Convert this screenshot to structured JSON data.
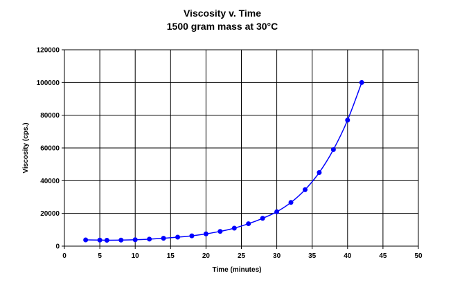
{
  "chart_data": {
    "type": "line",
    "title": "Viscosity v. Time",
    "subtitle": "1500 gram mass at 30°C",
    "xlabel": "Time (minutes)",
    "ylabel": "Viscosity (cps.)",
    "xlim": [
      0,
      50
    ],
    "ylim": [
      0,
      120000
    ],
    "xticks": [
      0,
      5,
      10,
      15,
      20,
      25,
      30,
      35,
      40,
      45,
      50
    ],
    "yticks": [
      0,
      20000,
      40000,
      60000,
      80000,
      100000,
      120000
    ],
    "grid": true,
    "series": [
      {
        "name": "Viscosity",
        "color": "#0000ff",
        "x": [
          3,
          5,
          6,
          8,
          10,
          12,
          14,
          16,
          18,
          20,
          22,
          24,
          26,
          28,
          30,
          32,
          34,
          36,
          38,
          40,
          42
        ],
        "y": [
          3800,
          3700,
          3600,
          3700,
          3900,
          4300,
          4800,
          5500,
          6300,
          7500,
          9000,
          11000,
          13700,
          17000,
          21000,
          26700,
          34500,
          45000,
          59000,
          77000,
          100000
        ]
      }
    ]
  }
}
